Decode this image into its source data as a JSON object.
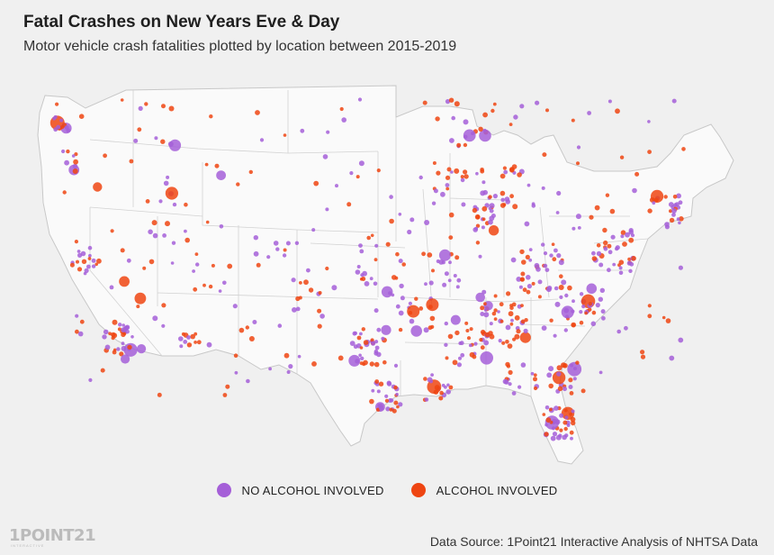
{
  "header": {
    "title": "Fatal Crashes on New Years Eve & Day",
    "subtitle": "Motor vehicle crash fatalities plotted by location between 2015-2019"
  },
  "legend": {
    "items": [
      {
        "label": "NO ALCOHOL INVOLVED",
        "color": "#a55fd8"
      },
      {
        "label": "ALCOHOL INVOLVED",
        "color": "#ee4512"
      }
    ]
  },
  "footer": {
    "logo_text": "1POINT21",
    "logo_subtext": "INTERACTIVE",
    "source": "Data Source: 1Point21 Interactive Analysis of NHTSA Data"
  },
  "colors": {
    "background": "#f0f0f0",
    "land": "#fafafa",
    "border": "#c8c8c8",
    "no_alcohol": "#a55fd8",
    "alcohol": "#ee4512"
  }
}
